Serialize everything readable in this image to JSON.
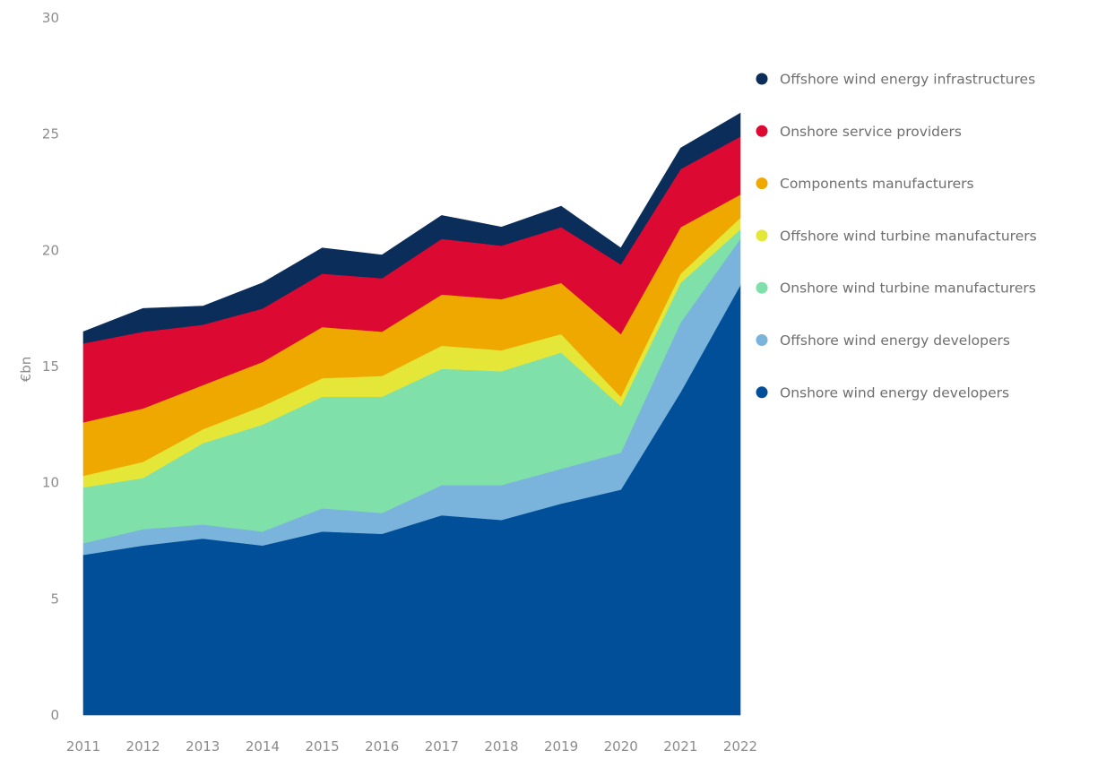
{
  "chart_data": {
    "type": "area",
    "stacked": true,
    "title": "",
    "xlabel": "",
    "ylabel": "€bn",
    "ylim": [
      0,
      30
    ],
    "yticks": [
      0,
      5,
      10,
      15,
      20,
      25,
      30
    ],
    "grid": false,
    "legend_position": "right",
    "categories": [
      "2011",
      "2012",
      "2013",
      "2014",
      "2015",
      "2016",
      "2017",
      "2018",
      "2019",
      "2020",
      "2021",
      "2022"
    ],
    "series": [
      {
        "name": "Onshore wind energy developers",
        "color": "#004f98",
        "values": [
          6.9,
          7.3,
          7.6,
          7.3,
          7.9,
          7.8,
          8.6,
          8.4,
          9.1,
          9.7,
          13.9,
          18.5
        ]
      },
      {
        "name": "Offshore wind energy developers",
        "color": "#7ab3dc",
        "values": [
          0.5,
          0.7,
          0.6,
          0.6,
          1.0,
          0.9,
          1.3,
          1.5,
          1.5,
          1.6,
          3.0,
          2.0
        ]
      },
      {
        "name": "Onshore wind turbine manufacturers",
        "color": "#7fe0a9",
        "values": [
          2.4,
          2.2,
          3.5,
          4.6,
          4.8,
          5.0,
          5.0,
          4.9,
          5.0,
          2.0,
          1.7,
          0.4
        ]
      },
      {
        "name": "Offshore wind turbine manufacturers",
        "color": "#e4e638",
        "values": [
          0.5,
          0.7,
          0.6,
          0.8,
          0.8,
          0.9,
          1.0,
          0.9,
          0.8,
          0.4,
          0.4,
          0.5
        ]
      },
      {
        "name": "Components manufacturers",
        "color": "#efa800",
        "values": [
          2.3,
          2.3,
          1.9,
          1.9,
          2.2,
          1.9,
          2.2,
          2.2,
          2.2,
          2.7,
          2.0,
          1.0
        ]
      },
      {
        "name": "Onshore service providers",
        "color": "#dc0a32",
        "values": [
          3.4,
          3.3,
          2.6,
          2.3,
          2.3,
          2.3,
          2.4,
          2.3,
          2.4,
          3.0,
          2.5,
          2.5
        ]
      },
      {
        "name": "Offshore wind energy infrastructures",
        "color": "#0a2d5a",
        "values": [
          0.5,
          1.0,
          0.8,
          1.1,
          1.1,
          1.0,
          1.0,
          0.8,
          0.9,
          0.7,
          0.9,
          1.0
        ]
      }
    ],
    "legend_order": [
      "Offshore wind energy infrastructures",
      "Onshore service providers",
      "Components manufacturers",
      "Offshore wind turbine manufacturers",
      "Onshore wind turbine manufacturers",
      "Offshore wind energy developers",
      "Onshore wind energy developers"
    ]
  }
}
